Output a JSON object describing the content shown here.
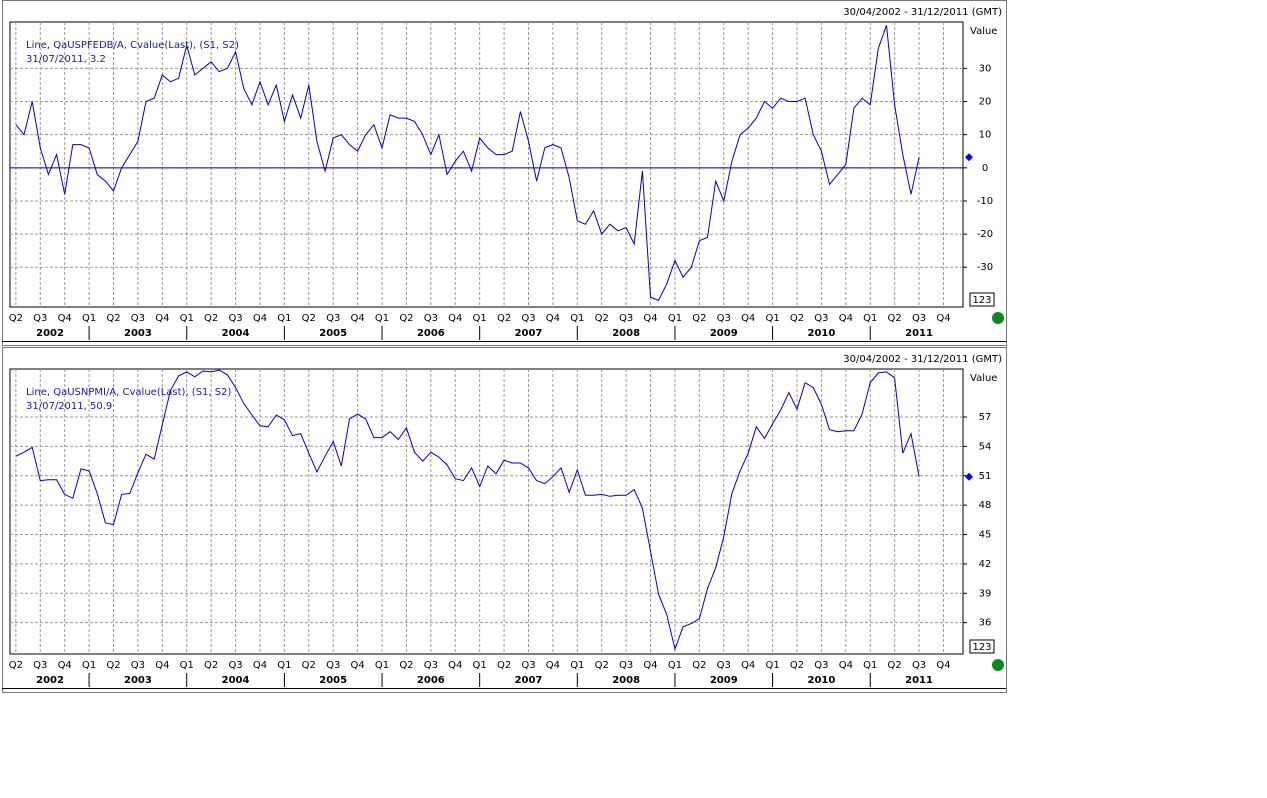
{
  "chart_data": [
    {
      "type": "line",
      "range_text": "30/04/2002 - 31/12/2011 (GMT)",
      "y_axis_title": "Value",
      "last_text": "31/07/2011, 3.2",
      "button_text": "123",
      "x": [
        2002.25,
        2002.333,
        2002.417,
        2002.5,
        2002.583,
        2002.667,
        2002.75,
        2002.833,
        2002.917,
        2003,
        2003.083,
        2003.167,
        2003.25,
        2003.333,
        2003.417,
        2003.5,
        2003.583,
        2003.667,
        2003.75,
        2003.833,
        2003.917,
        2004,
        2004.083,
        2004.167,
        2004.25,
        2004.333,
        2004.417,
        2004.5,
        2004.583,
        2004.667,
        2004.75,
        2004.833,
        2004.917,
        2005,
        2005.083,
        2005.167,
        2005.25,
        2005.333,
        2005.417,
        2005.5,
        2005.583,
        2005.667,
        2005.75,
        2005.833,
        2005.917,
        2006,
        2006.083,
        2006.167,
        2006.25,
        2006.333,
        2006.417,
        2006.5,
        2006.583,
        2006.667,
        2006.75,
        2006.833,
        2006.917,
        2007,
        2007.083,
        2007.167,
        2007.25,
        2007.333,
        2007.417,
        2007.5,
        2007.583,
        2007.667,
        2007.75,
        2007.833,
        2007.917,
        2008,
        2008.083,
        2008.167,
        2008.25,
        2008.333,
        2008.417,
        2008.5,
        2008.583,
        2008.667,
        2008.75,
        2008.833,
        2008.917,
        2009,
        2009.083,
        2009.167,
        2009.25,
        2009.333,
        2009.417,
        2009.5,
        2009.583,
        2009.667,
        2009.75,
        2009.833,
        2009.917,
        2010,
        2010.083,
        2010.167,
        2010.25,
        2010.333,
        2010.417,
        2010.5,
        2010.583,
        2010.667,
        2010.75,
        2010.833,
        2010.917,
        2011,
        2011.083,
        2011.167,
        2011.25,
        2011.333,
        2011.417,
        2011.5
      ],
      "series": [
        {
          "name": "Line, QaUSPFEDB/A, Cvalue(Last), (S1, S2)",
          "color": "#0000cc",
          "values": [
            13,
            10,
            20,
            6,
            -2,
            4,
            -8,
            7,
            7,
            6,
            -2,
            -4,
            -7,
            0,
            4,
            8,
            20,
            21,
            28,
            26,
            27,
            37,
            28,
            30,
            32,
            29,
            30,
            35,
            24,
            19,
            26,
            19,
            25,
            14,
            22,
            15,
            25,
            8,
            -1,
            9,
            10,
            7,
            5,
            10,
            13,
            6,
            16,
            15,
            15,
            14,
            10,
            4,
            10,
            -2,
            2,
            5,
            -1,
            9,
            6,
            4,
            4,
            5,
            17,
            8,
            -4,
            6,
            7,
            6,
            -3,
            -16,
            -17,
            -13,
            -20,
            -17,
            -19,
            -18,
            -23,
            -1,
            -39,
            -40,
            -35,
            -28,
            -33,
            -30,
            -22,
            -21,
            -4,
            -10,
            2,
            10,
            12,
            15,
            20,
            18,
            21,
            20,
            20,
            21,
            10,
            5,
            -5,
            -2,
            1,
            18,
            21,
            19,
            36,
            43,
            19,
            4,
            -8,
            3.2
          ]
        }
      ],
      "hline": 0,
      "xlim": [
        2002.19,
        2011.95
      ],
      "xticks": [
        {
          "value": 2002.25,
          "label": "Q2"
        },
        {
          "value": 2002.5,
          "label": "Q3"
        },
        {
          "value": 2002.75,
          "label": "Q4"
        },
        {
          "value": 2003,
          "label": "Q1"
        },
        {
          "value": 2003.25,
          "label": "Q2"
        },
        {
          "value": 2003.5,
          "label": "Q3"
        },
        {
          "value": 2003.75,
          "label": "Q4"
        },
        {
          "value": 2004,
          "label": "Q1"
        },
        {
          "value": 2004.25,
          "label": "Q2"
        },
        {
          "value": 2004.5,
          "label": "Q3"
        },
        {
          "value": 2004.75,
          "label": "Q4"
        },
        {
          "value": 2005,
          "label": "Q1"
        },
        {
          "value": 2005.25,
          "label": "Q2"
        },
        {
          "value": 2005.5,
          "label": "Q3"
        },
        {
          "value": 2005.75,
          "label": "Q4"
        },
        {
          "value": 2006,
          "label": "Q1"
        },
        {
          "value": 2006.25,
          "label": "Q2"
        },
        {
          "value": 2006.5,
          "label": "Q3"
        },
        {
          "value": 2006.75,
          "label": "Q4"
        },
        {
          "value": 2007,
          "label": "Q1"
        },
        {
          "value": 2007.25,
          "label": "Q2"
        },
        {
          "value": 2007.5,
          "label": "Q3"
        },
        {
          "value": 2007.75,
          "label": "Q4"
        },
        {
          "value": 2008,
          "label": "Q1"
        },
        {
          "value": 2008.25,
          "label": "Q2"
        },
        {
          "value": 2008.5,
          "label": "Q3"
        },
        {
          "value": 2008.75,
          "label": "Q4"
        },
        {
          "value": 2009,
          "label": "Q1"
        },
        {
          "value": 2009.25,
          "label": "Q2"
        },
        {
          "value": 2009.5,
          "label": "Q3"
        },
        {
          "value": 2009.75,
          "label": "Q4"
        },
        {
          "value": 2010,
          "label": "Q1"
        },
        {
          "value": 2010.25,
          "label": "Q2"
        },
        {
          "value": 2010.5,
          "label": "Q3"
        },
        {
          "value": 2010.75,
          "label": "Q4"
        },
        {
          "value": 2011,
          "label": "Q1"
        },
        {
          "value": 2011.25,
          "label": "Q2"
        },
        {
          "value": 2011.5,
          "label": "Q3"
        },
        {
          "value": 2011.75,
          "label": "Q4"
        }
      ],
      "year_labels": [
        {
          "value": 2002.6,
          "label": "2002"
        },
        {
          "value": 2003.5,
          "label": "2003"
        },
        {
          "value": 2004.5,
          "label": "2004"
        },
        {
          "value": 2005.5,
          "label": "2005"
        },
        {
          "value": 2006.5,
          "label": "2006"
        },
        {
          "value": 2007.5,
          "label": "2007"
        },
        {
          "value": 2008.5,
          "label": "2008"
        },
        {
          "value": 2009.5,
          "label": "2009"
        },
        {
          "value": 2010.5,
          "label": "2010"
        },
        {
          "value": 2011.5,
          "label": "2011"
        }
      ],
      "ylim": [
        -42,
        44
      ],
      "yticks": [
        -30,
        -20,
        -10,
        0,
        10,
        20,
        30
      ],
      "grid": true
    },
    {
      "type": "line",
      "range_text": "30/04/2002 - 31/12/2011 (GMT)",
      "y_axis_title": "Value",
      "last_text": "31/07/2011, 50.9",
      "button_text": "123",
      "x": [
        2002.25,
        2002.333,
        2002.417,
        2002.5,
        2002.583,
        2002.667,
        2002.75,
        2002.833,
        2002.917,
        2003,
        2003.083,
        2003.167,
        2003.25,
        2003.333,
        2003.417,
        2003.5,
        2003.583,
        2003.667,
        2003.75,
        2003.833,
        2003.917,
        2004,
        2004.083,
        2004.167,
        2004.25,
        2004.333,
        2004.417,
        2004.5,
        2004.583,
        2004.667,
        2004.75,
        2004.833,
        2004.917,
        2005,
        2005.083,
        2005.167,
        2005.25,
        2005.333,
        2005.417,
        2005.5,
        2005.583,
        2005.667,
        2005.75,
        2005.833,
        2005.917,
        2006,
        2006.083,
        2006.167,
        2006.25,
        2006.333,
        2006.417,
        2006.5,
        2006.583,
        2006.667,
        2006.75,
        2006.833,
        2006.917,
        2007,
        2007.083,
        2007.167,
        2007.25,
        2007.333,
        2007.417,
        2007.5,
        2007.583,
        2007.667,
        2007.75,
        2007.833,
        2007.917,
        2008,
        2008.083,
        2008.167,
        2008.25,
        2008.333,
        2008.417,
        2008.5,
        2008.583,
        2008.667,
        2008.75,
        2008.833,
        2008.917,
        2009,
        2009.083,
        2009.167,
        2009.25,
        2009.333,
        2009.417,
        2009.5,
        2009.583,
        2009.667,
        2009.75,
        2009.833,
        2009.917,
        2010,
        2010.083,
        2010.167,
        2010.25,
        2010.333,
        2010.417,
        2010.5,
        2010.583,
        2010.667,
        2010.75,
        2010.833,
        2010.917,
        2011,
        2011.083,
        2011.167,
        2011.25,
        2011.333,
        2011.417,
        2011.5
      ],
      "series": [
        {
          "name": "Line, QaUSNPMI/A, Cvalue(Last), (S1, S2)",
          "color": "#0000cc",
          "values": [
            53,
            53.4,
            53.9,
            50.5,
            50.6,
            50.6,
            49.1,
            48.7,
            51.7,
            51.5,
            49.2,
            46.2,
            46.0,
            49.1,
            49.2,
            51.3,
            53.2,
            52.7,
            56.2,
            59.7,
            61.2,
            61.6,
            61.1,
            61.7,
            61.6,
            61.8,
            61.3,
            60.0,
            58.4,
            57.2,
            56.1,
            56.0,
            57.2,
            56.7,
            55.1,
            55.3,
            53.3,
            51.4,
            53.0,
            54.5,
            52.0,
            56.8,
            57.3,
            56.8,
            54.9,
            54.9,
            55.5,
            54.7,
            55.9,
            53.4,
            52.5,
            53.4,
            52.9,
            52.1,
            50.7,
            50.5,
            51.8,
            49.9,
            52.0,
            51.2,
            52.6,
            52.3,
            52.3,
            51.8,
            50.5,
            50.2,
            50.9,
            51.8,
            49.3,
            51.6,
            49.0,
            49.0,
            49.1,
            48.9,
            49.0,
            49.0,
            49.6,
            47.7,
            43.3,
            38.9,
            36.8,
            33.3,
            35.6,
            35.9,
            36.4,
            39.5,
            41.6,
            44.8,
            49.2,
            51.5,
            53.3,
            56.0,
            54.8,
            56.3,
            57.7,
            59.5,
            57.8,
            60.5,
            60.0,
            58.3,
            55.7,
            55.5,
            55.6,
            55.6,
            57.3,
            60.5,
            61.5,
            61.6,
            61.0,
            53.3,
            55.3,
            50.9
          ]
        }
      ],
      "xlim": [
        2002.19,
        2011.95
      ],
      "xticks": [
        {
          "value": 2002.25,
          "label": "Q2"
        },
        {
          "value": 2002.5,
          "label": "Q3"
        },
        {
          "value": 2002.75,
          "label": "Q4"
        },
        {
          "value": 2003,
          "label": "Q1"
        },
        {
          "value": 2003.25,
          "label": "Q2"
        },
        {
          "value": 2003.5,
          "label": "Q3"
        },
        {
          "value": 2003.75,
          "label": "Q4"
        },
        {
          "value": 2004,
          "label": "Q1"
        },
        {
          "value": 2004.25,
          "label": "Q2"
        },
        {
          "value": 2004.5,
          "label": "Q3"
        },
        {
          "value": 2004.75,
          "label": "Q4"
        },
        {
          "value": 2005,
          "label": "Q1"
        },
        {
          "value": 2005.25,
          "label": "Q2"
        },
        {
          "value": 2005.5,
          "label": "Q3"
        },
        {
          "value": 2005.75,
          "label": "Q4"
        },
        {
          "value": 2006,
          "label": "Q1"
        },
        {
          "value": 2006.25,
          "label": "Q2"
        },
        {
          "value": 2006.5,
          "label": "Q3"
        },
        {
          "value": 2006.75,
          "label": "Q4"
        },
        {
          "value": 2007,
          "label": "Q1"
        },
        {
          "value": 2007.25,
          "label": "Q2"
        },
        {
          "value": 2007.5,
          "label": "Q3"
        },
        {
          "value": 2007.75,
          "label": "Q4"
        },
        {
          "value": 2008,
          "label": "Q1"
        },
        {
          "value": 2008.25,
          "label": "Q2"
        },
        {
          "value": 2008.5,
          "label": "Q3"
        },
        {
          "value": 2008.75,
          "label": "Q4"
        },
        {
          "value": 2009,
          "label": "Q1"
        },
        {
          "value": 2009.25,
          "label": "Q2"
        },
        {
          "value": 2009.5,
          "label": "Q3"
        },
        {
          "value": 2009.75,
          "label": "Q4"
        },
        {
          "value": 2010,
          "label": "Q1"
        },
        {
          "value": 2010.25,
          "label": "Q2"
        },
        {
          "value": 2010.5,
          "label": "Q3"
        },
        {
          "value": 2010.75,
          "label": "Q4"
        },
        {
          "value": 2011,
          "label": "Q1"
        },
        {
          "value": 2011.25,
          "label": "Q2"
        },
        {
          "value": 2011.5,
          "label": "Q3"
        },
        {
          "value": 2011.75,
          "label": "Q4"
        }
      ],
      "year_labels": [
        {
          "value": 2002.6,
          "label": "2002"
        },
        {
          "value": 2003.5,
          "label": "2003"
        },
        {
          "value": 2004.5,
          "label": "2004"
        },
        {
          "value": 2005.5,
          "label": "2005"
        },
        {
          "value": 2006.5,
          "label": "2006"
        },
        {
          "value": 2007.5,
          "label": "2007"
        },
        {
          "value": 2008.5,
          "label": "2008"
        },
        {
          "value": 2009.5,
          "label": "2009"
        },
        {
          "value": 2010.5,
          "label": "2010"
        },
        {
          "value": 2011.5,
          "label": "2011"
        }
      ],
      "ylim": [
        32.8,
        61.9
      ],
      "yticks": [
        36,
        39,
        42,
        45,
        48,
        51,
        54,
        57
      ],
      "grid": true
    }
  ]
}
